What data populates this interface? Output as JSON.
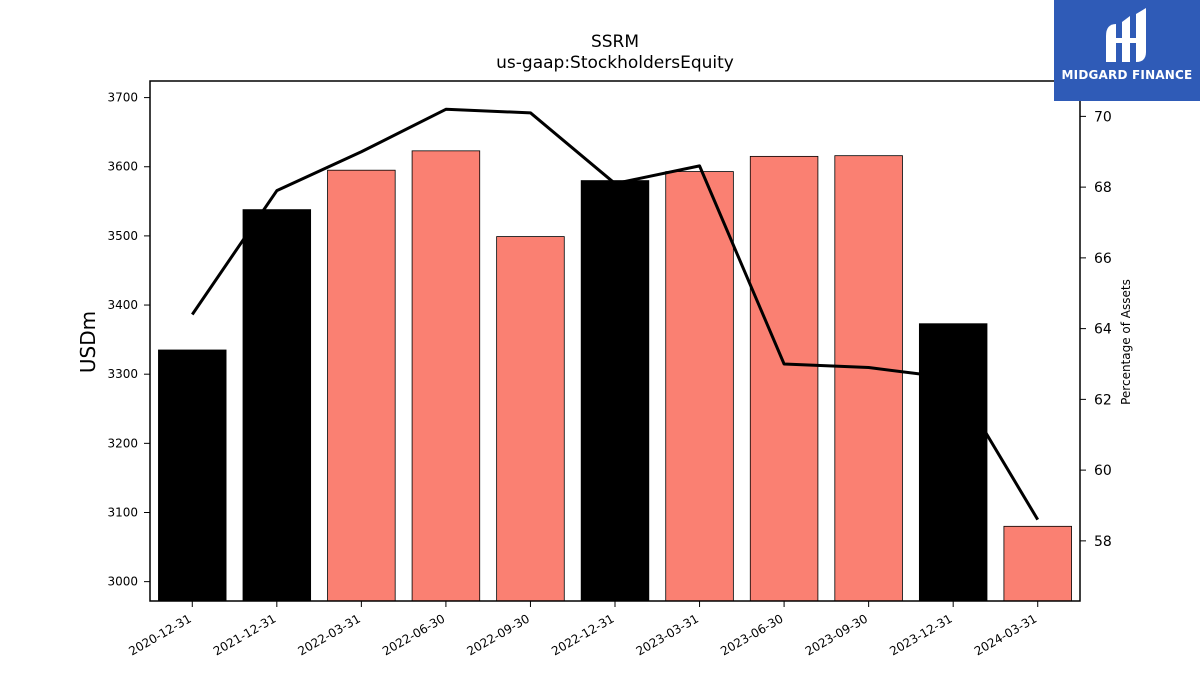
{
  "chart_data": {
    "type": "bar",
    "title": "SSRM",
    "subtitle": "us-gaap:StockholdersEquity",
    "ylabel": "USDm",
    "y2label": "Percentage of Assets",
    "categories": [
      "2020-12-31",
      "2021-12-31",
      "2022-03-31",
      "2022-06-30",
      "2022-09-30",
      "2022-12-31",
      "2023-03-31",
      "2023-06-30",
      "2023-09-30",
      "2023-12-31",
      "2024-03-31"
    ],
    "values": [
      3335,
      3538,
      3595,
      3623,
      3499,
      3580,
      3593,
      3615,
      3616,
      3373,
      3080
    ],
    "bar_colors": [
      "#000000",
      "#000000",
      "#fa8072",
      "#fa8072",
      "#fa8072",
      "#000000",
      "#fa8072",
      "#fa8072",
      "#fa8072",
      "#000000",
      "#fa8072"
    ],
    "line_series": {
      "values": [
        64.4,
        67.9,
        69.0,
        70.2,
        70.1,
        68.1,
        68.6,
        63.0,
        62.9,
        62.6,
        58.6
      ],
      "color": "#000000"
    },
    "ylim": [
      2972,
      3724
    ],
    "y2lim": [
      56.3,
      71.0
    ],
    "yticks": [
      3000,
      3100,
      3200,
      3300,
      3400,
      3500,
      3600,
      3700
    ],
    "y2ticks": [
      58,
      60,
      62,
      64,
      66,
      68,
      70
    ],
    "grid": false
  },
  "logo": {
    "text": "MIDGARD FINANCE"
  }
}
